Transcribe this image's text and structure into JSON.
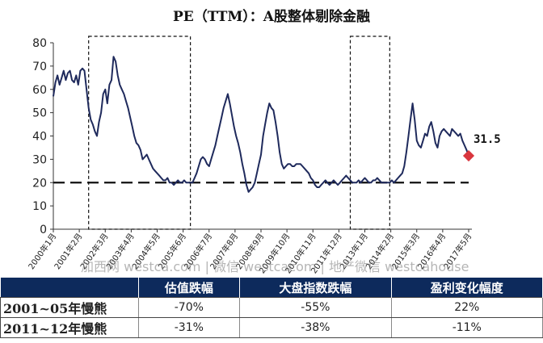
{
  "chart_data": {
    "type": "line",
    "title": "PE（TTM）：A股整体剔除金融",
    "ylim": [
      0,
      80
    ],
    "yticks": [
      "0",
      "10",
      "20",
      "30",
      "40",
      "50",
      "60",
      "70",
      "80"
    ],
    "xtick_labels": [
      "2000年1月",
      "2001年2月",
      "2002年3月",
      "2003年4月",
      "2004年5月",
      "2005年6月",
      "2006年7月",
      "2007年8月",
      "2008年9月",
      "2009年10月",
      "2010年11月",
      "2011年12月",
      "2013年1月",
      "2014年2月",
      "2015年3月",
      "2016年4月",
      "2017年5月"
    ],
    "reference_line": 20,
    "shaded_windows": [
      {
        "start": 17,
        "end": 66
      },
      {
        "start": 143,
        "end": 162
      }
    ],
    "last_point": {
      "label": "31.5",
      "value": 31.5,
      "color": "#d9363e"
    },
    "line_color": "#1f2a5c",
    "series": [
      {
        "values": [
          57,
          63,
          66,
          62,
          65,
          68,
          64,
          67,
          68,
          64,
          63,
          66,
          62,
          68,
          69,
          68,
          60,
          52,
          47,
          45,
          42,
          40,
          46,
          50,
          58,
          60,
          54,
          62,
          64,
          74,
          72,
          66,
          62,
          60,
          58,
          55,
          52,
          48,
          44,
          40,
          37,
          36,
          34,
          30,
          31,
          32,
          30,
          28,
          26,
          25,
          24,
          23,
          22,
          21,
          21,
          22,
          20,
          20,
          19,
          20,
          21,
          20,
          20,
          21,
          20,
          20,
          20,
          20,
          22,
          24,
          27,
          30,
          31,
          30,
          28,
          27,
          30,
          33,
          36,
          40,
          44,
          48,
          52,
          55,
          58,
          54,
          49,
          44,
          40,
          37,
          33,
          28,
          24,
          19,
          16,
          17,
          18,
          20,
          24,
          28,
          32,
          40,
          45,
          50,
          54,
          52,
          51,
          46,
          40,
          33,
          28,
          26,
          27,
          28,
          28,
          27,
          27,
          28,
          28,
          28,
          27,
          26,
          25,
          24,
          22,
          21,
          19,
          18,
          18,
          19,
          20,
          21,
          20,
          19,
          20,
          21,
          20,
          19,
          20,
          21,
          22,
          23,
          22,
          21,
          20,
          20,
          20,
          21,
          20,
          21,
          22,
          21,
          20,
          20,
          21,
          21,
          22,
          21,
          20,
          20,
          20,
          20,
          20,
          21,
          20,
          21,
          22,
          23,
          24,
          27,
          33,
          40,
          47,
          54,
          47,
          38,
          36,
          35,
          38,
          41,
          40,
          44,
          46,
          42,
          37,
          35,
          40,
          42,
          43,
          42,
          41,
          40,
          43,
          42,
          41,
          40,
          41,
          38,
          36,
          34,
          31.5
        ]
      }
    ]
  },
  "watermark": "加西网 westca.com | 微信 westcacom | 地产微信 westcahouse",
  "table": {
    "headers": [
      "",
      "估值跌幅",
      "大盘指数跌幅",
      "盈利变化幅度"
    ],
    "rows": [
      {
        "label": "2001~05年慢熊",
        "pe_drop": "-70%",
        "index_drop": "-55%",
        "earnings": "22%"
      },
      {
        "label": "2011~12年慢熊",
        "pe_drop": "-31%",
        "index_drop": "-38%",
        "earnings": "-11%"
      }
    ]
  }
}
